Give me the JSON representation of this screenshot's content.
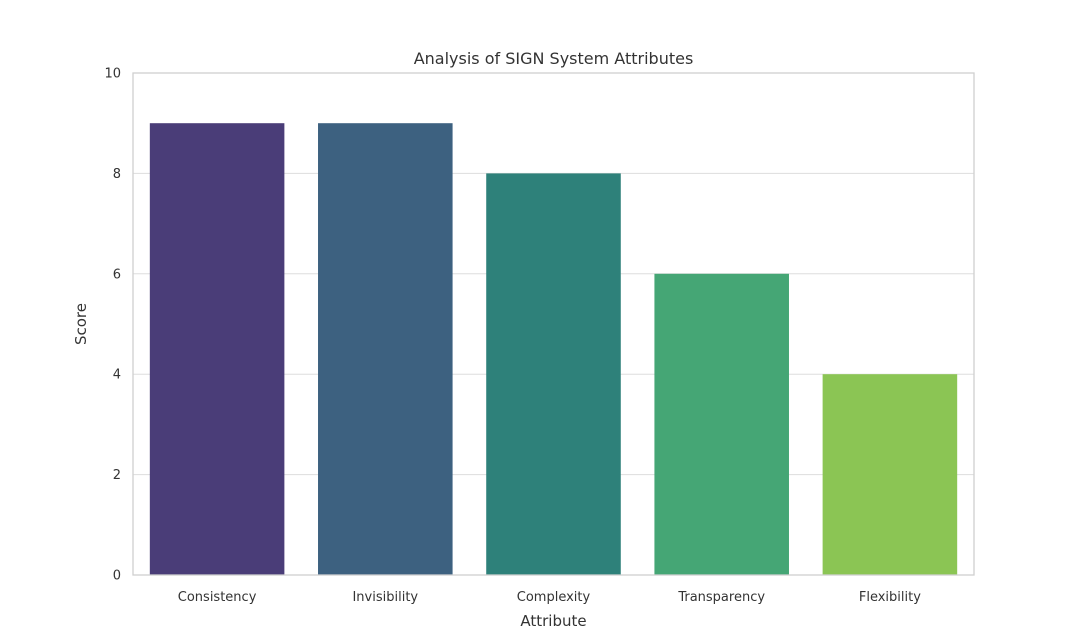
{
  "chart_data": {
    "type": "bar",
    "title": "Analysis of SIGN System Attributes",
    "xlabel": "Attribute",
    "ylabel": "Score",
    "categories": [
      "Consistency",
      "Invisibility",
      "Complexity",
      "Transparency",
      "Flexibility"
    ],
    "values": [
      9,
      9,
      8,
      6,
      4
    ],
    "colors": [
      "#4a3d78",
      "#3d6180",
      "#2e817a",
      "#45a675",
      "#8bc554"
    ],
    "ylim": [
      0,
      10
    ],
    "yticks": [
      "0",
      "2",
      "4",
      "6",
      "8",
      "10"
    ],
    "grid": true,
    "legend": "none"
  }
}
